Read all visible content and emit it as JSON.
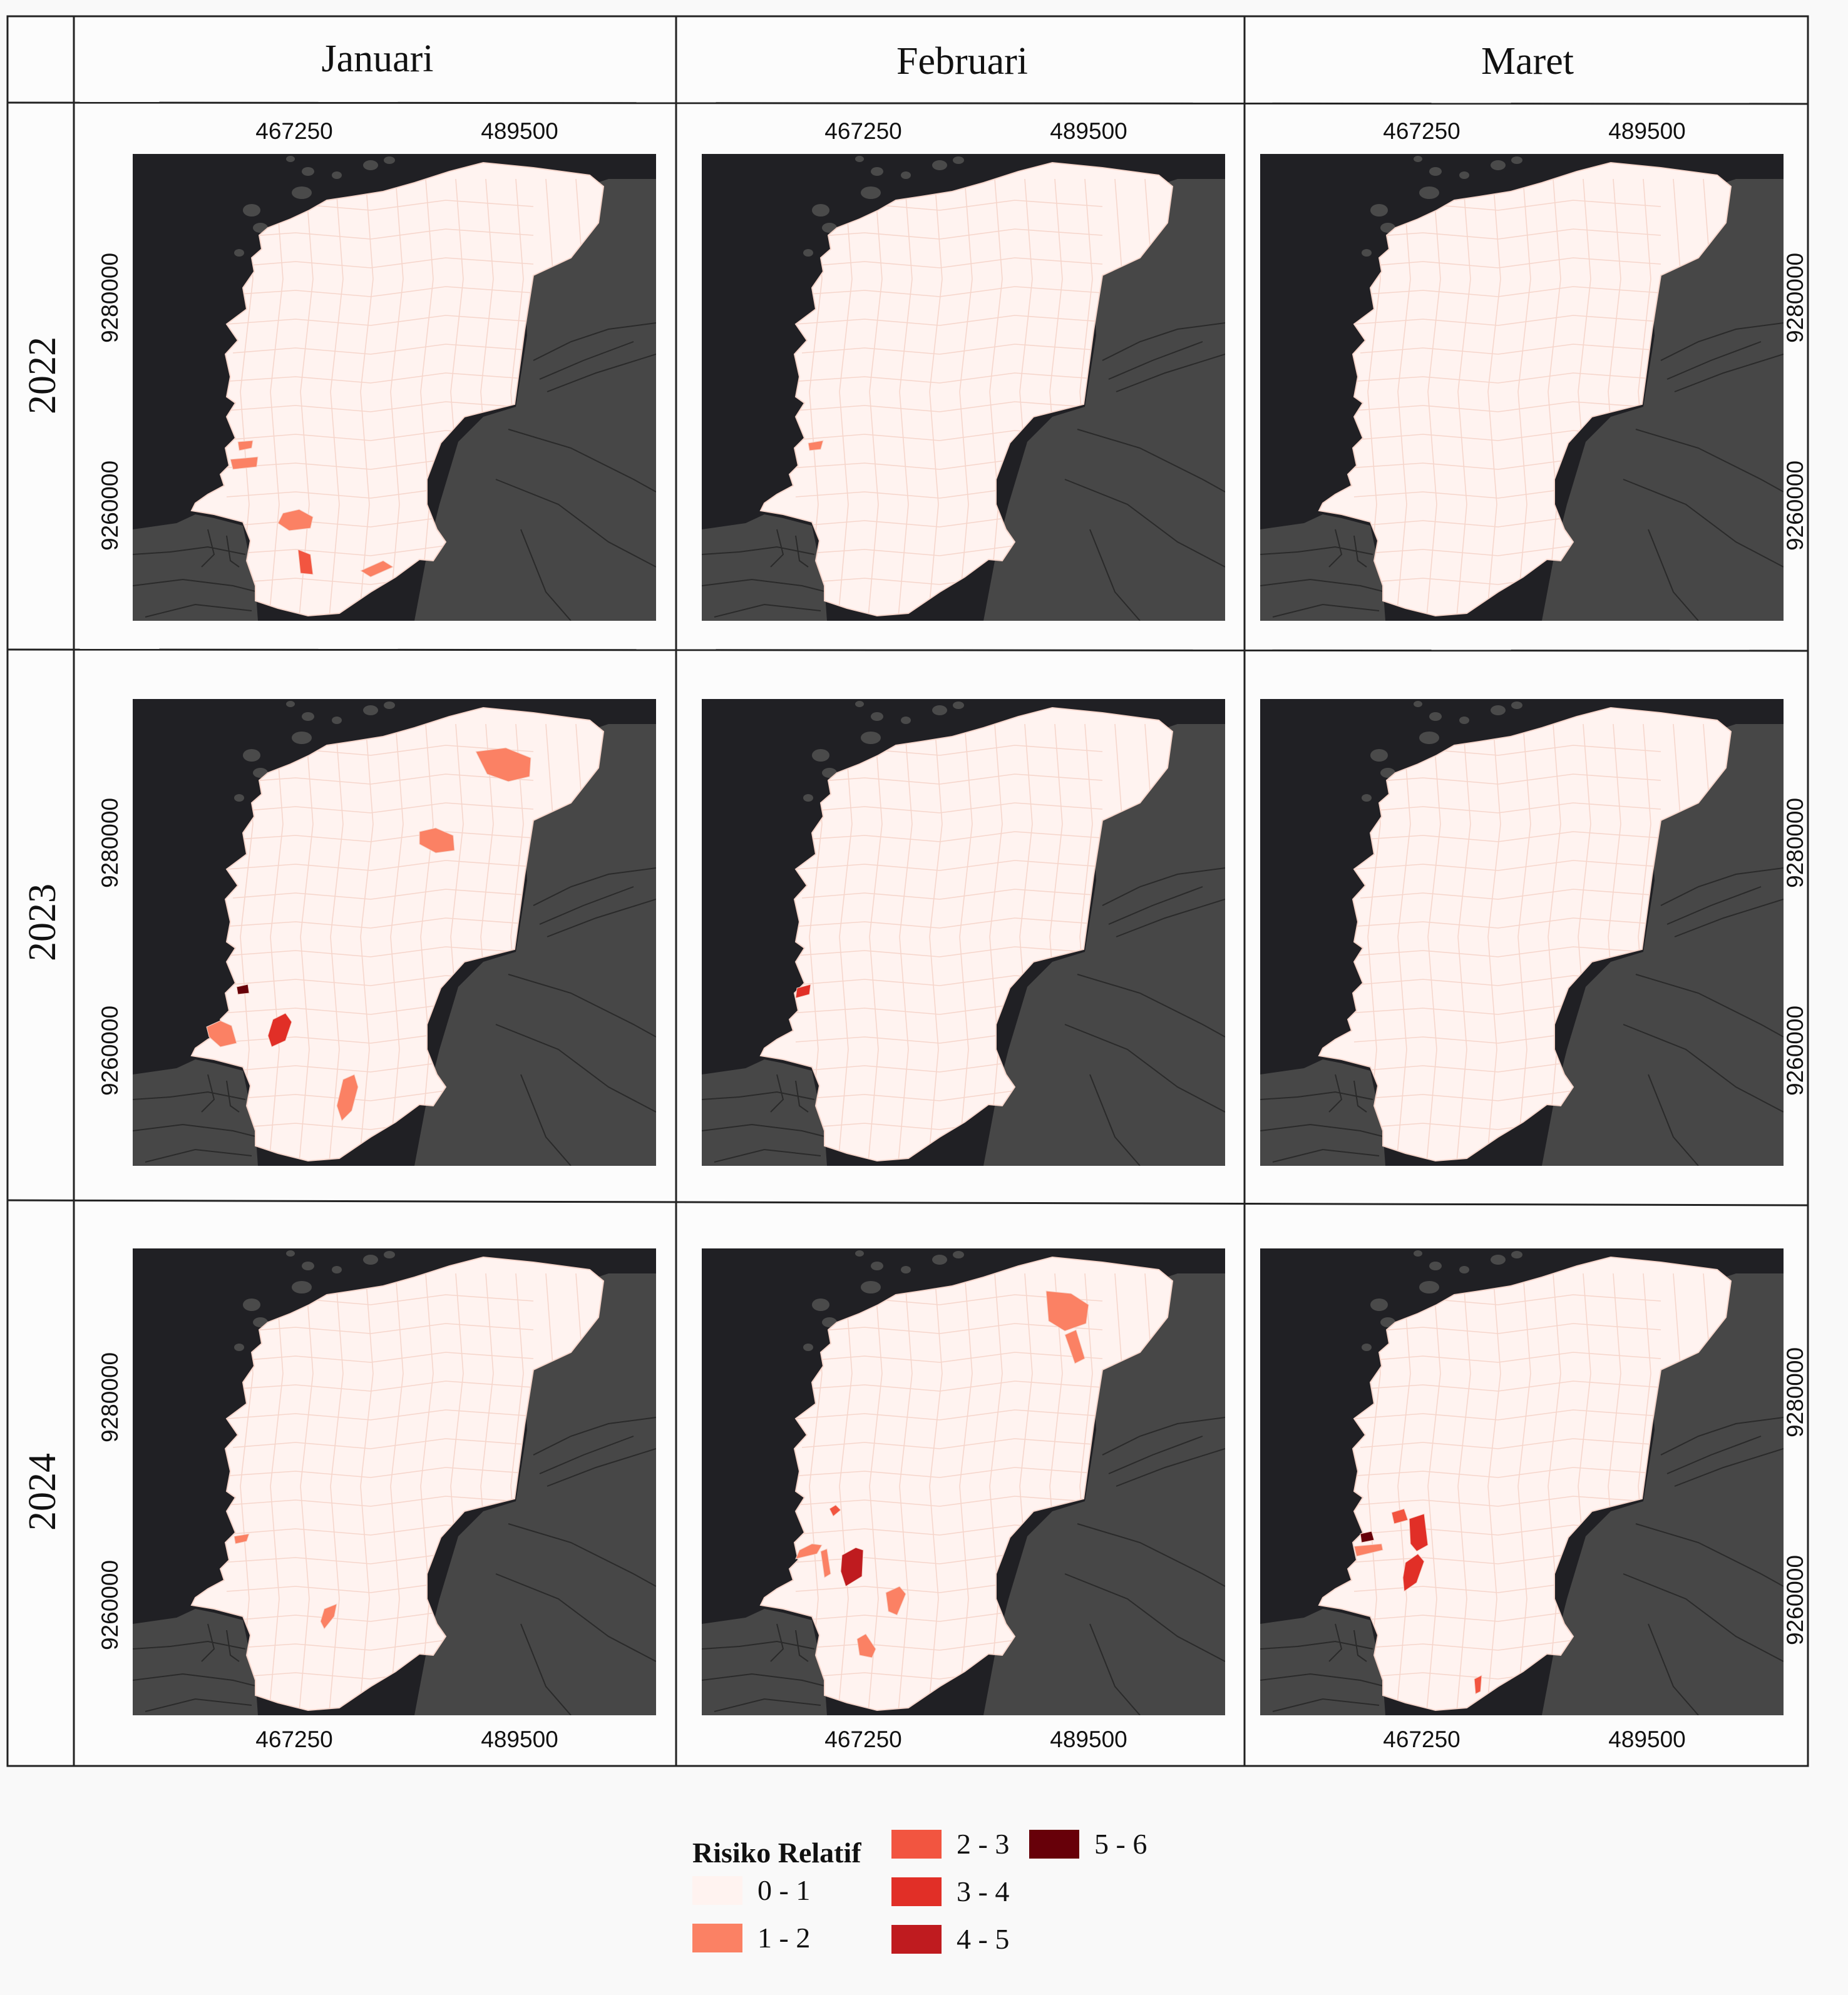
{
  "columns": [
    {
      "label": "Januari"
    },
    {
      "label": "Februari"
    },
    {
      "label": "Maret"
    }
  ],
  "rows": [
    {
      "label": "2022"
    },
    {
      "label": "2023"
    },
    {
      "label": "2024"
    }
  ],
  "axes": {
    "x_ticks": [
      "467250",
      "489500"
    ],
    "y_ticks": [
      "9280000",
      "9260000"
    ]
  },
  "colors": {
    "sea": "#202024",
    "land_outside": "#474747",
    "study_area": "#fff3f0",
    "boundary": "#f6d6cc"
  },
  "legend": {
    "title": "Risiko Relatif",
    "classes": [
      {
        "label": "0 - 1",
        "color": "#fff3f0"
      },
      {
        "label": "1 - 2",
        "color": "#fb8164"
      },
      {
        "label": "2 - 3",
        "color": "#f25540"
      },
      {
        "label": "3 - 4",
        "color": "#e12f27"
      },
      {
        "label": "4 - 5",
        "color": "#bf1b1f"
      },
      {
        "label": "5 - 6",
        "color": "#670009"
      }
    ]
  },
  "panels": [
    {
      "row": "2022",
      "column": "Januari",
      "highlighted_districts": [
        {
          "class": "1 - 2"
        },
        {
          "class": "1 - 2"
        },
        {
          "class": "1 - 2"
        },
        {
          "class": "2 - 3"
        },
        {
          "class": "1 - 2"
        }
      ]
    },
    {
      "row": "2022",
      "column": "Februari",
      "highlighted_districts": [
        {
          "class": "1 - 2"
        }
      ]
    },
    {
      "row": "2022",
      "column": "Maret",
      "highlighted_districts": []
    },
    {
      "row": "2023",
      "column": "Januari",
      "highlighted_districts": [
        {
          "class": "1 - 2"
        },
        {
          "class": "1 - 2"
        },
        {
          "class": "5 - 6"
        },
        {
          "class": "1 - 2"
        },
        {
          "class": "3 - 4"
        },
        {
          "class": "1 - 2"
        }
      ]
    },
    {
      "row": "2023",
      "column": "Februari",
      "highlighted_districts": [
        {
          "class": "3 - 4"
        }
      ]
    },
    {
      "row": "2023",
      "column": "Maret",
      "highlighted_districts": []
    },
    {
      "row": "2024",
      "column": "Januari",
      "highlighted_districts": [
        {
          "class": "1 - 2"
        },
        {
          "class": "1 - 2"
        }
      ]
    },
    {
      "row": "2024",
      "column": "Februari",
      "highlighted_districts": [
        {
          "class": "1 - 2"
        },
        {
          "class": "1 - 2"
        },
        {
          "class": "2 - 3"
        },
        {
          "class": "1 - 2"
        },
        {
          "class": "4 - 5"
        },
        {
          "class": "1 - 2"
        },
        {
          "class": "1 - 2"
        },
        {
          "class": "1 - 2"
        }
      ]
    },
    {
      "row": "2024",
      "column": "Maret",
      "highlighted_districts": [
        {
          "class": "5 - 6"
        },
        {
          "class": "2 - 3"
        },
        {
          "class": "1 - 2"
        },
        {
          "class": "3 - 4"
        },
        {
          "class": "3 - 4"
        },
        {
          "class": "2 - 3"
        }
      ]
    }
  ]
}
